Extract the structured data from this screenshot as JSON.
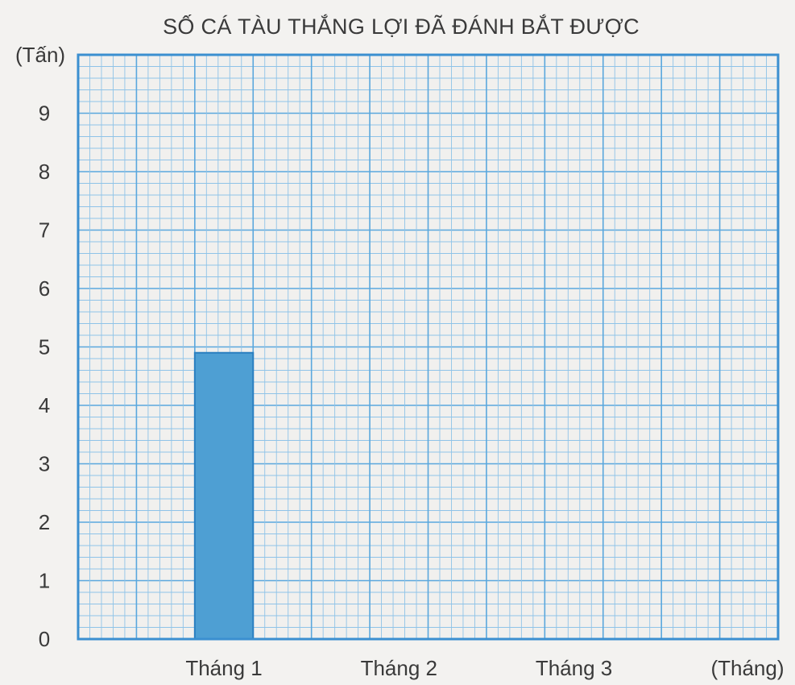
{
  "chart_data": {
    "type": "bar",
    "title": "SỐ CÁ TÀU THẮNG LỢI ĐÃ ĐÁNH BẮT ĐƯỢC",
    "ylabel": "(Tấn)",
    "xlabel": "(Tháng)",
    "categories": [
      "Tháng 1",
      "Tháng 2",
      "Tháng 3"
    ],
    "values": [
      4.9,
      null,
      null
    ],
    "ylim": [
      0,
      10
    ],
    "yticks": [
      "0",
      "1",
      "2",
      "3",
      "4",
      "5",
      "6",
      "7",
      "8",
      "9"
    ],
    "grid": true,
    "colors": {
      "bar": "#4e9fd3",
      "bar_edge": "#2a7fc0",
      "grid_minor": "#8fc3e8",
      "grid_major": "#5aa7dd",
      "frame": "#3b8fd0",
      "paper": "#f1f0ee"
    }
  }
}
